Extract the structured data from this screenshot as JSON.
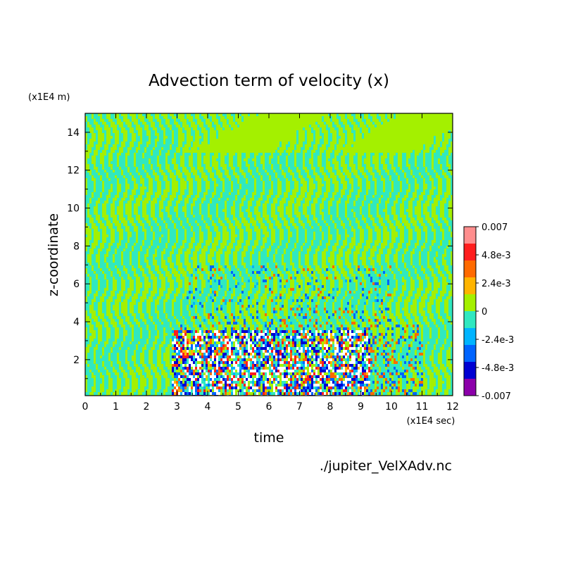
{
  "chart_data": {
    "type": "heatmap",
    "title": "Advection term of velocity (x)",
    "xlabel": "time",
    "ylabel": "z-coordinate",
    "x_unit": "(x1E4 sec)",
    "y_unit": "(x1E4 m)",
    "xlim": [
      0,
      12
    ],
    "ylim": [
      0.1,
      15
    ],
    "x_ticks": [
      "0",
      "1",
      "2",
      "3",
      "4",
      "5",
      "6",
      "7",
      "8",
      "9",
      "10",
      "11",
      "12"
    ],
    "y_ticks": [
      "2",
      "4",
      "6",
      "8",
      "10",
      "12",
      "14"
    ],
    "colorbar": {
      "range": [
        -0.007,
        0.007
      ],
      "tick_labels": [
        "0.007",
        "4.8e-3",
        "2.4e-3",
        "0",
        "-2.4e-3",
        "-4.8e-3",
        "-0.007"
      ],
      "colors": [
        "#ff8e8e",
        "#ff1e1e",
        "#ff6a00",
        "#ffb400",
        "#a4f000",
        "#30e8c0",
        "#00b4ff",
        "#0064ff",
        "#0000d2",
        "#8c00aa"
      ]
    },
    "background_value": 0,
    "source_file": "./jupiter_VelXAdv.nc"
  }
}
